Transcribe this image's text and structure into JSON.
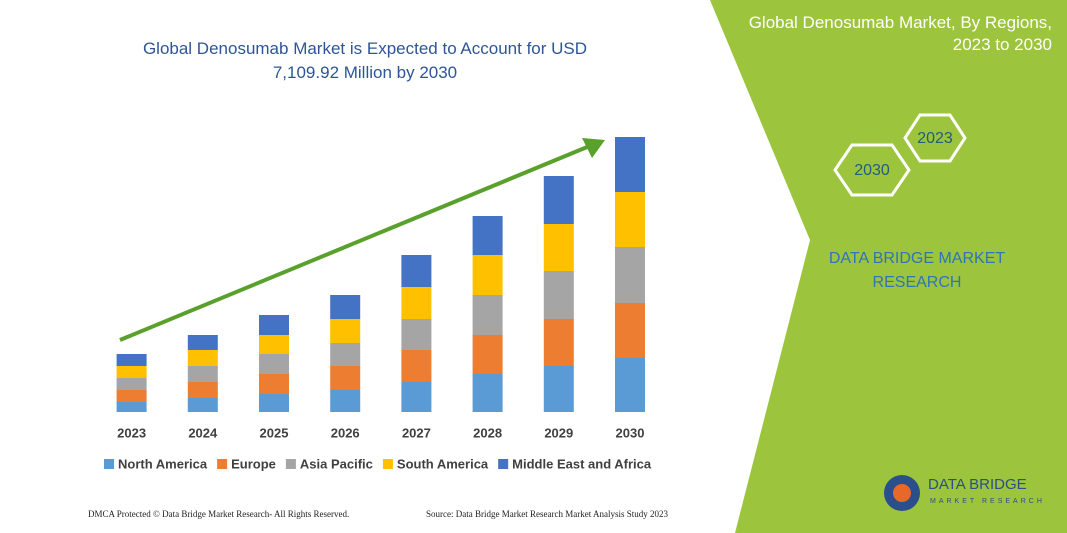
{
  "chart_data": {
    "type": "stacked_bar",
    "title": "Global Denosumab Market is Expected to Account for USD 7,109.92 Million by 2030",
    "categories": [
      "2023",
      "2024",
      "2025",
      "2026",
      "2027",
      "2028",
      "2029",
      "2030"
    ],
    "series": [
      {
        "name": "North America",
        "color": "#5b9bd5",
        "values": [
          10,
          14,
          18,
          22,
          30,
          38,
          46,
          54
        ]
      },
      {
        "name": "Europe",
        "color": "#ed7d31",
        "values": [
          12,
          16,
          20,
          24,
          32,
          39,
          47,
          55
        ]
      },
      {
        "name": "Asia Pacific",
        "color": "#a5a5a5",
        "values": [
          12,
          16,
          20,
          23,
          31,
          40,
          48,
          56
        ]
      },
      {
        "name": "South America",
        "color": "#ffc000",
        "values": [
          12,
          16,
          19,
          24,
          32,
          40,
          47,
          55
        ]
      },
      {
        "name": "Middle East and Africa",
        "color": "#4472c4",
        "values": [
          12,
          15,
          20,
          24,
          32,
          39,
          48,
          55
        ]
      }
    ],
    "legend": "bottom"
  },
  "header": {
    "title": "Global Denosumab Market, By Regions, 2023 to 2030"
  },
  "badges": [
    "2023",
    "2030"
  ],
  "brand": {
    "tagline": "DATA BRIDGE MARKET RESEARCH",
    "logo_name": "DATA BRIDGE",
    "logo_sub": "MARKET RESEARCH"
  },
  "footer": {
    "left": "DMCA Protected © Data Bridge Market Research- All Rights Reserved.",
    "right": "Source: Data Bridge Market Research Market Analysis Study 2023"
  }
}
